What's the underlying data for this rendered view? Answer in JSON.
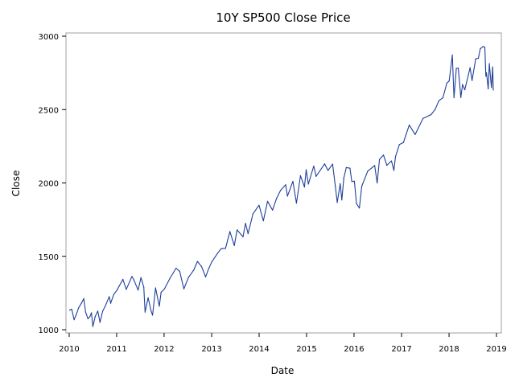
{
  "chart_data": {
    "type": "line",
    "title": "10Y SP500 Close Price",
    "xlabel": "Date",
    "ylabel": "Close",
    "xlim": [
      "2010-01-01",
      "2019-01-01"
    ],
    "ylim": [
      1000,
      3000
    ],
    "x_ticks": [
      "2010",
      "2011",
      "2012",
      "2013",
      "2014",
      "2015",
      "2016",
      "2017",
      "2018",
      "2019"
    ],
    "y_ticks": [
      1000,
      1500,
      2000,
      2500,
      3000
    ],
    "grid": false,
    "legend": "none",
    "colors": {
      "series": "#1f3f9a",
      "frame": "#a0a0a0"
    },
    "series": [
      {
        "x": [
          "2010-01-04",
          "2010-01-20",
          "2010-02-08",
          "2010-02-25",
          "2010-03-15",
          "2010-04-05",
          "2010-04-23",
          "2010-05-07",
          "2010-05-25",
          "2010-06-10",
          "2010-06-21",
          "2010-07-02",
          "2010-07-20",
          "2010-08-09",
          "2010-08-26",
          "2010-09-15",
          "2010-10-05",
          "2010-11-05",
          "2010-11-16",
          "2010-12-10",
          "2011-01-04",
          "2011-02-18",
          "2011-03-16",
          "2011-04-29",
          "2011-05-13",
          "2011-06-15",
          "2011-07-07",
          "2011-07-29",
          "2011-08-08",
          "2011-08-31",
          "2011-09-22",
          "2011-10-04",
          "2011-10-27",
          "2011-11-25",
          "2011-12-09",
          "2012-01-03",
          "2012-02-15",
          "2012-04-02",
          "2012-04-30",
          "2012-06-01",
          "2012-07-06",
          "2012-08-15",
          "2012-09-14",
          "2012-10-15",
          "2012-11-15",
          "2012-12-10",
          "2013-01-02",
          "2013-02-15",
          "2013-03-15",
          "2013-04-18",
          "2013-05-21",
          "2013-06-24",
          "2013-07-15",
          "2013-08-30",
          "2013-09-18",
          "2013-10-08",
          "2013-11-15",
          "2013-12-31",
          "2014-02-03",
          "2014-03-07",
          "2014-04-14",
          "2014-05-15",
          "2014-06-15",
          "2014-07-24",
          "2014-08-07",
          "2014-09-18",
          "2014-10-15",
          "2014-11-15",
          "2014-12-16",
          "2014-12-29",
          "2015-01-15",
          "2015-02-25",
          "2015-03-15",
          "2015-05-20",
          "2015-06-15",
          "2015-07-20",
          "2015-08-10",
          "2015-08-25",
          "2015-09-17",
          "2015-09-29",
          "2015-10-15",
          "2015-11-03",
          "2015-12-01",
          "2015-12-15",
          "2016-01-04",
          "2016-01-20",
          "2016-02-11",
          "2016-03-01",
          "2016-04-15",
          "2016-06-08",
          "2016-06-27",
          "2016-07-15",
          "2016-08-15",
          "2016-09-09",
          "2016-10-15",
          "2016-11-03",
          "2016-11-15",
          "2016-12-15",
          "2017-01-15",
          "2017-03-01",
          "2017-04-15",
          "2017-06-15",
          "2017-08-15",
          "2017-09-15",
          "2017-10-15",
          "2017-11-15",
          "2017-12-15",
          "2018-01-02",
          "2018-01-26",
          "2018-02-08",
          "2018-02-26",
          "2018-03-13",
          "2018-04-02",
          "2018-04-15",
          "2018-05-02",
          "2018-06-12",
          "2018-06-27",
          "2018-07-25",
          "2018-08-15",
          "2018-08-29",
          "2018-09-20",
          "2018-10-03",
          "2018-10-11",
          "2018-10-16",
          "2018-10-29",
          "2018-11-07",
          "2018-11-23",
          "2018-12-03",
          "2018-12-07"
        ],
        "values": [
          1133,
          1140,
          1068,
          1105,
          1150,
          1180,
          1212,
          1120,
          1075,
          1090,
          1115,
          1022,
          1090,
          1127,
          1050,
          1125,
          1160,
          1225,
          1180,
          1240,
          1270,
          1343,
          1275,
          1363,
          1340,
          1270,
          1355,
          1290,
          1120,
          1218,
          1130,
          1099,
          1285,
          1160,
          1255,
          1277,
          1350,
          1419,
          1398,
          1278,
          1355,
          1405,
          1465,
          1430,
          1360,
          1418,
          1462,
          1520,
          1552,
          1555,
          1669,
          1573,
          1680,
          1633,
          1725,
          1655,
          1790,
          1848,
          1742,
          1875,
          1815,
          1895,
          1950,
          1988,
          1910,
          2011,
          1862,
          2050,
          1972,
          2090,
          1992,
          2115,
          2045,
          2130,
          2085,
          2128,
          1980,
          1867,
          1995,
          1884,
          2035,
          2105,
          2100,
          2010,
          2012,
          1859,
          1829,
          1978,
          2080,
          2119,
          2000,
          2160,
          2190,
          2120,
          2150,
          2085,
          2180,
          2262,
          2275,
          2395,
          2330,
          2440,
          2465,
          2500,
          2560,
          2580,
          2680,
          2695,
          2872,
          2581,
          2780,
          2782,
          2582,
          2670,
          2635,
          2786,
          2698,
          2846,
          2850,
          2914,
          2930,
          2925,
          2728,
          2750,
          2641,
          2813,
          2650,
          2790,
          2633
        ]
      }
    ]
  }
}
